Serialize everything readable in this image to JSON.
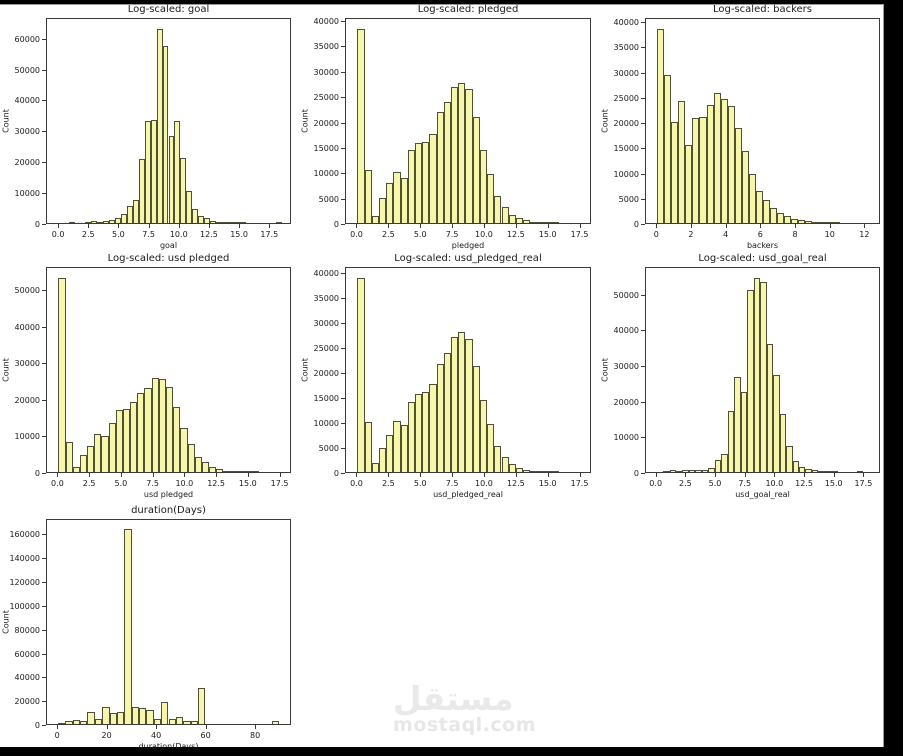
{
  "watermark": {
    "arabic": "مستقل",
    "domain": "mostaql.com"
  },
  "colors": {
    "page_background": "#000000",
    "figure_background": "#ffffff",
    "bar_fill": "#f7f7a8",
    "bar_edge": "#50503a",
    "spine": "#3a3a3a",
    "text": "#1a1a1a",
    "watermark": "#e9e9e9"
  },
  "chart_data": [
    {
      "id": "goal",
      "type": "bar",
      "title": "Log-scaled: goal",
      "xlabel": "goal",
      "ylabel": "Count",
      "xlim": [
        -1.0,
        19.3
      ],
      "ylim": [
        0,
        66700
      ],
      "bin_width": 0.5,
      "xticks": [
        0.0,
        2.5,
        5.0,
        7.5,
        10.0,
        12.5,
        15.0,
        17.5
      ],
      "xtick_labels": [
        "0.0",
        "2.5",
        "5.0",
        "7.5",
        "10.0",
        "12.5",
        "15.0",
        "17.5"
      ],
      "yticks": [
        0,
        10000,
        20000,
        30000,
        40000,
        50000,
        60000
      ],
      "ytick_labels": [
        "0",
        "10000",
        "20000",
        "30000",
        "40000",
        "50000",
        "60000"
      ],
      "grid": false,
      "bars": [
        [
          0.85,
          350
        ],
        [
          2.15,
          200
        ],
        [
          2.65,
          600
        ],
        [
          3.15,
          350
        ],
        [
          3.65,
          500
        ],
        [
          4.15,
          1000
        ],
        [
          4.65,
          1600
        ],
        [
          5.15,
          3100
        ],
        [
          5.65,
          5700
        ],
        [
          6.15,
          7500
        ],
        [
          6.65,
          20900
        ],
        [
          7.15,
          33200
        ],
        [
          7.65,
          33700
        ],
        [
          8.15,
          63500
        ],
        [
          8.65,
          57800
        ],
        [
          9.15,
          28600
        ],
        [
          9.65,
          33400
        ],
        [
          10.15,
          21100
        ],
        [
          10.65,
          10400
        ],
        [
          11.15,
          4700
        ],
        [
          11.65,
          2400
        ],
        [
          12.15,
          1700
        ],
        [
          12.65,
          800
        ],
        [
          13.15,
          450
        ],
        [
          13.65,
          250
        ],
        [
          14.15,
          130
        ],
        [
          14.65,
          90
        ],
        [
          15.15,
          60
        ],
        [
          18.1,
          400
        ]
      ]
    },
    {
      "id": "pledged",
      "type": "bar",
      "title": "Log-scaled: pledged",
      "xlabel": "pledged",
      "ylabel": "Count",
      "xlim": [
        -0.9,
        18.4
      ],
      "ylim": [
        0,
        40600
      ],
      "bin_width": 0.57,
      "xticks": [
        0.0,
        2.5,
        5.0,
        7.5,
        10.0,
        12.5,
        15.0,
        17.5
      ],
      "xtick_labels": [
        "0.0",
        "2.5",
        "5.0",
        "7.5",
        "10.0",
        "12.5",
        "15.0",
        "17.5"
      ],
      "yticks": [
        0,
        5000,
        10000,
        15000,
        20000,
        25000,
        30000,
        35000,
        40000
      ],
      "ytick_labels": [
        "0",
        "5000",
        "10000",
        "15000",
        "20000",
        "25000",
        "30000",
        "35000",
        "40000"
      ],
      "grid": false,
      "bars": [
        [
          0,
          38700
        ],
        [
          0.57,
          10600
        ],
        [
          1.14,
          1300
        ],
        [
          1.71,
          4900
        ],
        [
          2.28,
          8000
        ],
        [
          2.85,
          10100
        ],
        [
          3.42,
          8900
        ],
        [
          3.99,
          14600
        ],
        [
          4.56,
          16000
        ],
        [
          5.13,
          16100
        ],
        [
          5.7,
          17700
        ],
        [
          6.27,
          22100
        ],
        [
          6.84,
          24100
        ],
        [
          7.41,
          27100
        ],
        [
          7.98,
          27800
        ],
        [
          8.55,
          26700
        ],
        [
          9.12,
          21100
        ],
        [
          9.69,
          14600
        ],
        [
          10.26,
          9700
        ],
        [
          10.83,
          5400
        ],
        [
          11.4,
          3200
        ],
        [
          11.97,
          1600
        ],
        [
          12.54,
          950
        ],
        [
          13.11,
          600
        ],
        [
          13.68,
          280
        ],
        [
          14.25,
          150
        ],
        [
          14.82,
          90
        ],
        [
          15.39,
          130
        ]
      ]
    },
    {
      "id": "backers",
      "type": "bar",
      "title": "Log-scaled: backers",
      "xlabel": "backers",
      "ylabel": "Count",
      "xlim": [
        -0.65,
        12.9
      ],
      "ylim": [
        0,
        40800
      ],
      "bin_width": 0.41,
      "xticks": [
        0,
        2,
        4,
        6,
        8,
        10,
        12
      ],
      "xtick_labels": [
        "0",
        "2",
        "4",
        "6",
        "8",
        "10",
        "12"
      ],
      "yticks": [
        0,
        5000,
        10000,
        15000,
        20000,
        25000,
        30000,
        35000,
        40000
      ],
      "ytick_labels": [
        "0",
        "5000",
        "10000",
        "15000",
        "20000",
        "25000",
        "30000",
        "35000",
        "40000"
      ],
      "grid": false,
      "bars": [
        [
          0,
          38900
        ],
        [
          0.41,
          29700
        ],
        [
          0.82,
          20300
        ],
        [
          1.23,
          24500
        ],
        [
          1.64,
          15600
        ],
        [
          2.05,
          21000
        ],
        [
          2.46,
          21300
        ],
        [
          2.87,
          23700
        ],
        [
          3.28,
          26000
        ],
        [
          3.69,
          24800
        ],
        [
          4.1,
          23500
        ],
        [
          4.51,
          19000
        ],
        [
          4.92,
          14400
        ],
        [
          5.33,
          9900
        ],
        [
          5.74,
          6500
        ],
        [
          6.15,
          4600
        ],
        [
          6.56,
          3100
        ],
        [
          6.97,
          2100
        ],
        [
          7.38,
          1500
        ],
        [
          7.79,
          850
        ],
        [
          8.2,
          600
        ],
        [
          8.61,
          350
        ],
        [
          9.02,
          200
        ],
        [
          9.43,
          130
        ],
        [
          9.84,
          90
        ],
        [
          10.25,
          60
        ]
      ]
    },
    {
      "id": "usd-pledged",
      "type": "bar",
      "title": "Log-scaled: usd pledged",
      "xlabel": "usd pledged",
      "ylabel": "Count",
      "xlim": [
        -0.9,
        18.4
      ],
      "ylim": [
        0,
        56300
      ],
      "bin_width": 0.57,
      "xticks": [
        0.0,
        2.5,
        5.0,
        7.5,
        10.0,
        12.5,
        15.0,
        17.5
      ],
      "xtick_labels": [
        "0.0",
        "2.5",
        "5.0",
        "7.5",
        "10.0",
        "12.5",
        "15.0",
        "17.5"
      ],
      "yticks": [
        0,
        10000,
        20000,
        30000,
        40000,
        50000
      ],
      "ytick_labels": [
        "0",
        "10000",
        "20000",
        "30000",
        "40000",
        "50000"
      ],
      "grid": false,
      "bars": [
        [
          0,
          53500
        ],
        [
          0.57,
          8200
        ],
        [
          1.14,
          1500
        ],
        [
          1.71,
          4700
        ],
        [
          2.28,
          7300
        ],
        [
          2.85,
          10400
        ],
        [
          3.42,
          10000
        ],
        [
          3.99,
          13500
        ],
        [
          4.56,
          17200
        ],
        [
          5.13,
          17400
        ],
        [
          5.7,
          19300
        ],
        [
          6.27,
          21800
        ],
        [
          6.84,
          23300
        ],
        [
          7.41,
          26000
        ],
        [
          7.98,
          25800
        ],
        [
          8.55,
          23600
        ],
        [
          9.12,
          18000
        ],
        [
          9.69,
          12200
        ],
        [
          10.26,
          7800
        ],
        [
          10.83,
          4200
        ],
        [
          11.4,
          2700
        ],
        [
          11.97,
          1400
        ],
        [
          12.54,
          800
        ],
        [
          13.11,
          400
        ],
        [
          13.68,
          200
        ],
        [
          14.25,
          120
        ],
        [
          14.82,
          80
        ],
        [
          15.39,
          100
        ]
      ]
    },
    {
      "id": "usd-pledged-real",
      "type": "bar",
      "title": "Log-scaled: usd_pledged_real",
      "xlabel": "usd_pledged_real",
      "ylabel": "Count",
      "xlim": [
        -0.9,
        18.4
      ],
      "ylim": [
        0,
        41100
      ],
      "bin_width": 0.57,
      "xticks": [
        0.0,
        2.5,
        5.0,
        7.5,
        10.0,
        12.5,
        15.0,
        17.5
      ],
      "xtick_labels": [
        "0.0",
        "2.5",
        "5.0",
        "7.5",
        "10.0",
        "12.5",
        "15.0",
        "17.5"
      ],
      "yticks": [
        0,
        5000,
        10000,
        15000,
        20000,
        25000,
        30000,
        35000,
        40000
      ],
      "ytick_labels": [
        "0",
        "5000",
        "10000",
        "15000",
        "20000",
        "25000",
        "30000",
        "35000",
        "40000"
      ],
      "grid": false,
      "bars": [
        [
          0,
          39100
        ],
        [
          0.57,
          10100
        ],
        [
          1.14,
          1800
        ],
        [
          1.71,
          4900
        ],
        [
          2.28,
          7400
        ],
        [
          2.85,
          10200
        ],
        [
          3.42,
          9500
        ],
        [
          3.99,
          14200
        ],
        [
          4.56,
          15800
        ],
        [
          5.13,
          16200
        ],
        [
          5.7,
          17800
        ],
        [
          6.27,
          21700
        ],
        [
          6.84,
          24000
        ],
        [
          7.41,
          27200
        ],
        [
          7.98,
          28200
        ],
        [
          8.55,
          26800
        ],
        [
          9.12,
          21300
        ],
        [
          9.69,
          14500
        ],
        [
          10.26,
          9600
        ],
        [
          10.83,
          5200
        ],
        [
          11.4,
          3000
        ],
        [
          11.97,
          1600
        ],
        [
          12.54,
          850
        ],
        [
          13.11,
          450
        ],
        [
          13.68,
          220
        ],
        [
          14.25,
          120
        ],
        [
          14.82,
          90
        ],
        [
          15.39,
          130
        ]
      ]
    },
    {
      "id": "usd-goal-real",
      "type": "bar",
      "title": "Log-scaled: usd_goal_real",
      "xlabel": "usd_goal_real",
      "ylabel": "Count",
      "xlim": [
        -0.9,
        18.9
      ],
      "ylim": [
        0,
        57800
      ],
      "bin_width": 0.55,
      "xticks": [
        0.0,
        2.5,
        5.0,
        7.5,
        10.0,
        12.5,
        15.0,
        17.5
      ],
      "xtick_labels": [
        "0.0",
        "2.5",
        "5.0",
        "7.5",
        "10.0",
        "12.5",
        "15.0",
        "17.5"
      ],
      "yticks": [
        0,
        10000,
        20000,
        30000,
        40000,
        50000
      ],
      "ytick_labels": [
        "0",
        "10000",
        "20000",
        "30000",
        "40000",
        "50000"
      ],
      "grid": false,
      "bars": [
        [
          0.55,
          350
        ],
        [
          1.1,
          450
        ],
        [
          1.65,
          150
        ],
        [
          2.2,
          500
        ],
        [
          2.75,
          650
        ],
        [
          3.3,
          450
        ],
        [
          3.85,
          650
        ],
        [
          4.4,
          1200
        ],
        [
          4.95,
          3400
        ],
        [
          5.5,
          5000
        ],
        [
          6.05,
          17300
        ],
        [
          6.6,
          27000
        ],
        [
          7.15,
          22800
        ],
        [
          7.7,
          51500
        ],
        [
          8.25,
          55000
        ],
        [
          8.8,
          53800
        ],
        [
          9.35,
          36200
        ],
        [
          9.9,
          27400
        ],
        [
          10.45,
          16400
        ],
        [
          11.0,
          7500
        ],
        [
          11.55,
          3200
        ],
        [
          12.1,
          1500
        ],
        [
          12.65,
          800
        ],
        [
          13.2,
          450
        ],
        [
          13.75,
          250
        ],
        [
          14.3,
          150
        ],
        [
          14.85,
          100
        ],
        [
          17.0,
          80
        ]
      ]
    },
    {
      "id": "duration-days",
      "type": "bar",
      "title": "duration(Days)",
      "xlabel": "duration(Days)",
      "ylabel": "Count",
      "xlim": [
        -4.5,
        94.5
      ],
      "ylim": [
        0,
        173000
      ],
      "bin_width": 3,
      "xticks": [
        0,
        20,
        40,
        60,
        80
      ],
      "xtick_labels": [
        "0",
        "20",
        "40",
        "60",
        "80"
      ],
      "yticks": [
        0,
        20000,
        40000,
        60000,
        80000,
        100000,
        120000,
        140000,
        160000
      ],
      "ytick_labels": [
        "0",
        "20000",
        "40000",
        "60000",
        "80000",
        "100000",
        "120000",
        "140000",
        "160000"
      ],
      "grid": false,
      "bars": [
        [
          0,
          800
        ],
        [
          3,
          2600
        ],
        [
          6,
          3400
        ],
        [
          9,
          2400
        ],
        [
          12,
          10200
        ],
        [
          15,
          4000
        ],
        [
          18,
          14600
        ],
        [
          21,
          9700
        ],
        [
          24,
          9900
        ],
        [
          27,
          165500
        ],
        [
          30,
          14500
        ],
        [
          33,
          13300
        ],
        [
          36,
          12100
        ],
        [
          39,
          4100
        ],
        [
          42,
          18600
        ],
        [
          45,
          4100
        ],
        [
          48,
          5800
        ],
        [
          51,
          2800
        ],
        [
          54,
          2600
        ],
        [
          57,
          30200
        ],
        [
          87,
          2300
        ]
      ]
    }
  ]
}
